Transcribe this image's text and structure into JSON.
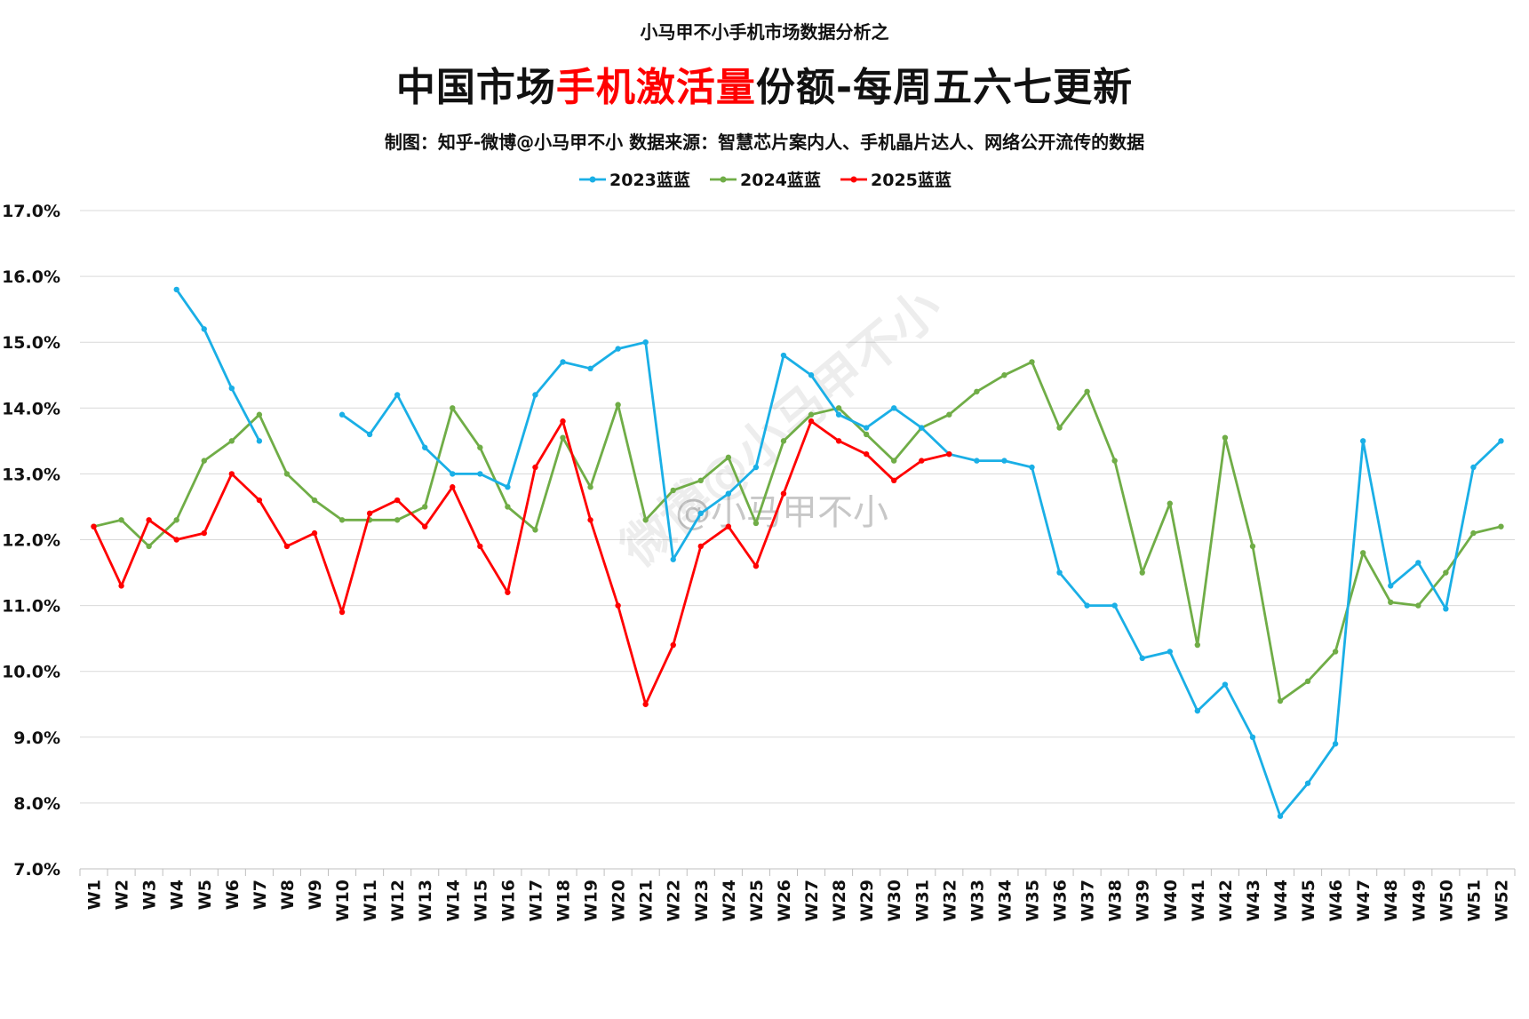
{
  "header": {
    "kicker": "小马甲不小手机市场数据分析之",
    "title_part1": "中国市场",
    "title_highlight": "手机激活量",
    "title_part2": "份额-每周五六七更新",
    "credit": "制图：知乎-微博@小马甲不小  数据来源：智慧芯片案内人、手机晶片达人、网络公开流传的数据"
  },
  "watermark": {
    "text": "@小马甲不小",
    "diagonal_text": "微博@小马甲不小"
  },
  "colors": {
    "grid": "#d9d9d9",
    "highlight": "#ff0000",
    "series_2023": "#1aafe6",
    "series_2024": "#70ad47",
    "series_2025": "#ff0000"
  },
  "chart_data": {
    "type": "line",
    "title": "",
    "xlabel": "",
    "ylabel": "",
    "ylim": [
      7.0,
      17.0
    ],
    "y_ticks": [
      7.0,
      8.0,
      9.0,
      10.0,
      11.0,
      12.0,
      13.0,
      14.0,
      15.0,
      16.0,
      17.0
    ],
    "y_tick_labels": [
      "7.0%",
      "8.0%",
      "9.0%",
      "10.0%",
      "11.0%",
      "12.0%",
      "13.0%",
      "14.0%",
      "15.0%",
      "16.0%",
      "17.0%"
    ],
    "y_grid": true,
    "legend_position": "top-center",
    "categories": [
      "W1",
      "W2",
      "W3",
      "W4",
      "W5",
      "W6",
      "W7",
      "W8",
      "W9",
      "W10",
      "W11",
      "W12",
      "W13",
      "W14",
      "W15",
      "W16",
      "W17",
      "W18",
      "W19",
      "W20",
      "W21",
      "W22",
      "W23",
      "W24",
      "W25",
      "W26",
      "W27",
      "W28",
      "W29",
      "W30",
      "W31",
      "W32",
      "W33",
      "W34",
      "W35",
      "W36",
      "W37",
      "W38",
      "W39",
      "W40",
      "W41",
      "W42",
      "W43",
      "W44",
      "W45",
      "W46",
      "W47",
      "W48",
      "W49",
      "W50",
      "W51",
      "W52"
    ],
    "series": [
      {
        "name": "2023蓝蓝",
        "color": "#1aafe6",
        "values": [
          null,
          null,
          null,
          15.8,
          15.2,
          14.3,
          13.5,
          null,
          null,
          13.9,
          13.6,
          14.2,
          13.4,
          13.0,
          13.0,
          12.8,
          14.2,
          14.7,
          14.6,
          14.9,
          15.0,
          11.7,
          12.4,
          12.7,
          13.1,
          14.8,
          14.5,
          13.9,
          13.7,
          14.0,
          13.7,
          13.3,
          13.2,
          13.2,
          13.1,
          11.5,
          11.0,
          11.0,
          10.2,
          10.3,
          9.4,
          9.8,
          9.0,
          7.8,
          8.3,
          8.9,
          13.5,
          11.3,
          11.65,
          10.95,
          13.1,
          13.5
        ]
      },
      {
        "name": "2024蓝蓝",
        "color": "#70ad47",
        "values": [
          12.2,
          12.3,
          11.9,
          12.3,
          13.2,
          13.5,
          13.9,
          13.0,
          12.6,
          12.3,
          12.3,
          12.3,
          12.5,
          14.0,
          13.4,
          12.5,
          12.15,
          13.55,
          12.8,
          14.05,
          12.3,
          12.75,
          12.9,
          13.25,
          12.25,
          13.5,
          13.9,
          14.0,
          13.6,
          13.2,
          13.7,
          13.9,
          14.25,
          14.5,
          14.7,
          13.7,
          14.25,
          13.2,
          11.5,
          12.55,
          10.4,
          13.55,
          11.9,
          9.55,
          9.85,
          10.3,
          11.8,
          11.05,
          11.0,
          11.5,
          12.1,
          12.2
        ]
      },
      {
        "name": "2025蓝蓝",
        "color": "#ff0000",
        "values": [
          12.2,
          11.3,
          12.3,
          12.0,
          12.1,
          13.0,
          12.6,
          11.9,
          12.1,
          10.9,
          12.4,
          12.6,
          12.2,
          12.8,
          11.9,
          11.2,
          13.1,
          13.8,
          12.3,
          11.0,
          9.5,
          10.4,
          11.9,
          12.2,
          11.6,
          12.7,
          13.8,
          13.5,
          13.3,
          12.9,
          13.2,
          13.3,
          null,
          null,
          null,
          null,
          null,
          null,
          null,
          null,
          null,
          null,
          null,
          null,
          null,
          null,
          null,
          null,
          null,
          null,
          null,
          null
        ]
      }
    ]
  }
}
